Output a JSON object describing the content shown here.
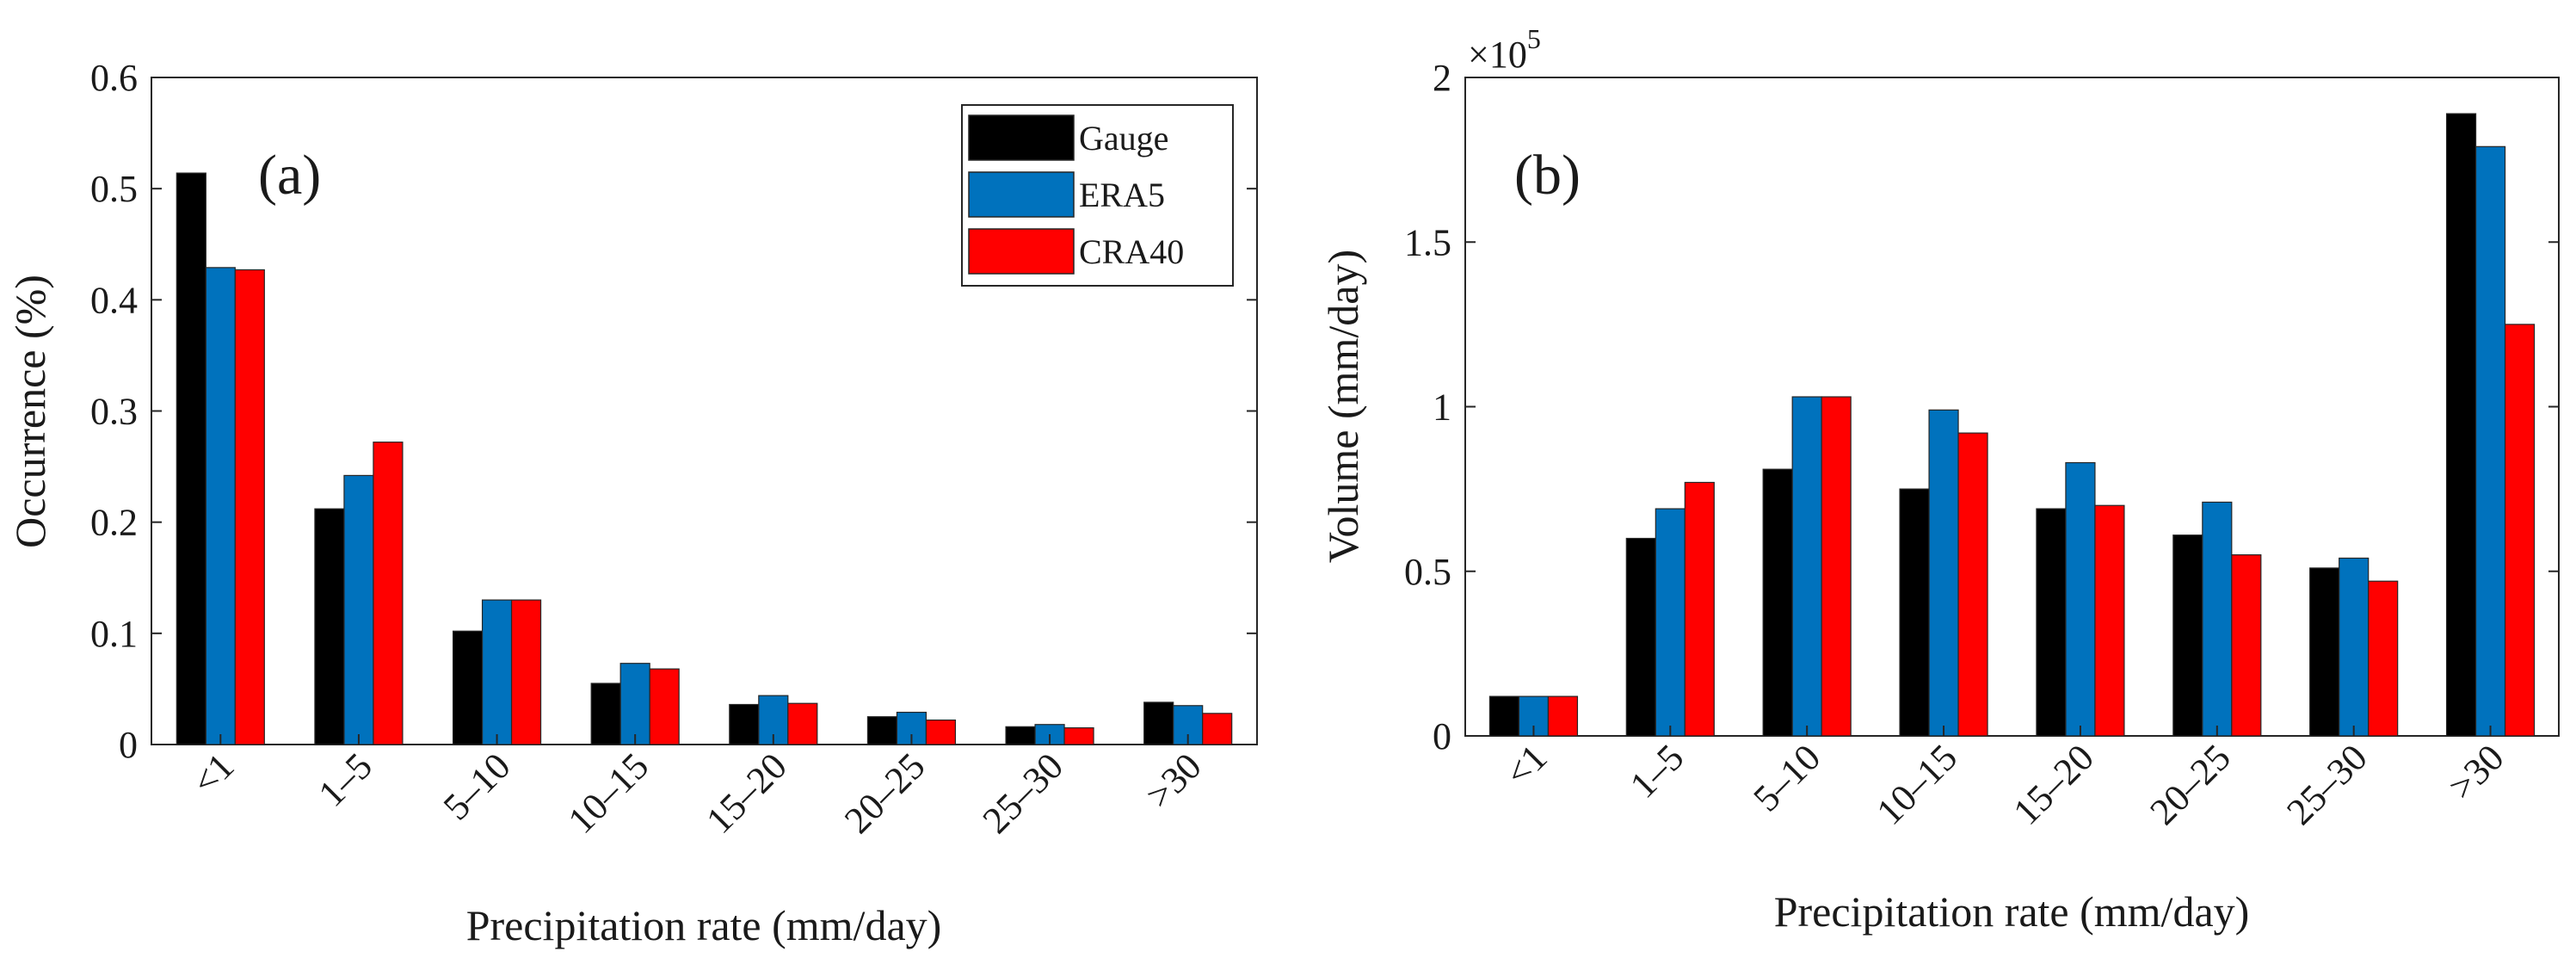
{
  "chart_data": [
    {
      "type": "bar",
      "panel_label": "(a)",
      "title": "",
      "xlabel": "Precipitation rate (mm/day)",
      "ylabel": "Occurrence (%)",
      "categories": [
        "<1",
        "1–5",
        "5–10",
        "10–15",
        "15–20",
        "20–25",
        "25–30",
        ">30"
      ],
      "ylim": [
        0,
        0.6
      ],
      "yticks": [
        0,
        0.1,
        0.2,
        0.3,
        0.4,
        0.5,
        0.6
      ],
      "ytick_labels": [
        "0",
        "0.1",
        "0.2",
        "0.3",
        "0.4",
        "0.5",
        "0.6"
      ],
      "legend": {
        "placement": "top-right",
        "entries": [
          "Gauge",
          "ERA5",
          "CRA40"
        ]
      },
      "series": [
        {
          "name": "Gauge",
          "color": "#000000",
          "values": [
            0.514,
            0.212,
            0.102,
            0.055,
            0.036,
            0.025,
            0.016,
            0.038
          ]
        },
        {
          "name": "ERA5",
          "color": "#0072BD",
          "values": [
            0.429,
            0.242,
            0.13,
            0.073,
            0.044,
            0.029,
            0.018,
            0.035
          ]
        },
        {
          "name": "CRA40",
          "color": "#FF0000",
          "values": [
            0.427,
            0.272,
            0.13,
            0.068,
            0.037,
            0.022,
            0.015,
            0.028
          ]
        }
      ]
    },
    {
      "type": "bar",
      "panel_label": "(b)",
      "title": "",
      "xlabel": "Precipitation rate (mm/day)",
      "ylabel": "Volume (mm/day)",
      "y_multiplier": {
        "base": "×10",
        "exponent": "5"
      },
      "categories": [
        "<1",
        "1–5",
        "5–10",
        "10–15",
        "15–20",
        "20–25",
        "25–30",
        ">30"
      ],
      "ylim": [
        0,
        2
      ],
      "yticks": [
        0,
        0.5,
        1,
        1.5,
        2
      ],
      "ytick_labels": [
        "0",
        "0.5",
        "1",
        "1.5",
        "2"
      ],
      "series": [
        {
          "name": "Gauge",
          "color": "#000000",
          "values": [
            0.12,
            0.6,
            0.81,
            0.75,
            0.69,
            0.61,
            0.51,
            1.89
          ]
        },
        {
          "name": "ERA5",
          "color": "#0072BD",
          "values": [
            0.12,
            0.69,
            1.03,
            0.99,
            0.83,
            0.71,
            0.54,
            1.79
          ]
        },
        {
          "name": "CRA40",
          "color": "#FF0000",
          "values": [
            0.12,
            0.77,
            1.03,
            0.92,
            0.7,
            0.55,
            0.47,
            1.25
          ]
        }
      ]
    }
  ]
}
